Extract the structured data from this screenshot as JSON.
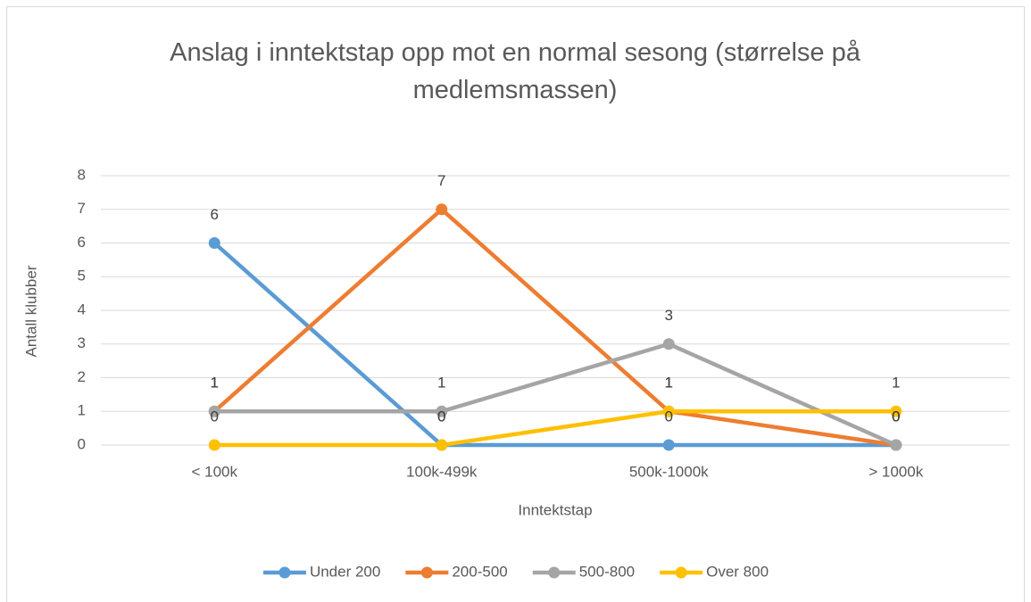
{
  "chart_data": {
    "type": "line",
    "title": "Anslag i inntektstap opp mot en normal sesong (størrelse på medlemsmassen)",
    "xlabel": "Inntektstap",
    "ylabel": "Antall klubber",
    "categories": [
      "< 100k",
      "100k-499k",
      "500k-1000k",
      "> 1000k"
    ],
    "series": [
      {
        "name": "Under 200",
        "color": "#5b9bd5",
        "values": [
          6,
          0,
          0,
          0
        ]
      },
      {
        "name": "200-500",
        "color": "#ed7d31",
        "values": [
          1,
          7,
          1,
          0
        ]
      },
      {
        "name": "500-800",
        "color": "#a5a5a5",
        "values": [
          1,
          1,
          3,
          0
        ]
      },
      {
        "name": "Over 800",
        "color": "#ffc000",
        "values": [
          0,
          0,
          1,
          1
        ]
      }
    ],
    "ylim": [
      0,
      8
    ],
    "yticks": [
      0,
      1,
      2,
      3,
      4,
      5,
      6,
      7,
      8
    ],
    "grid": true,
    "legend": "bottom"
  }
}
